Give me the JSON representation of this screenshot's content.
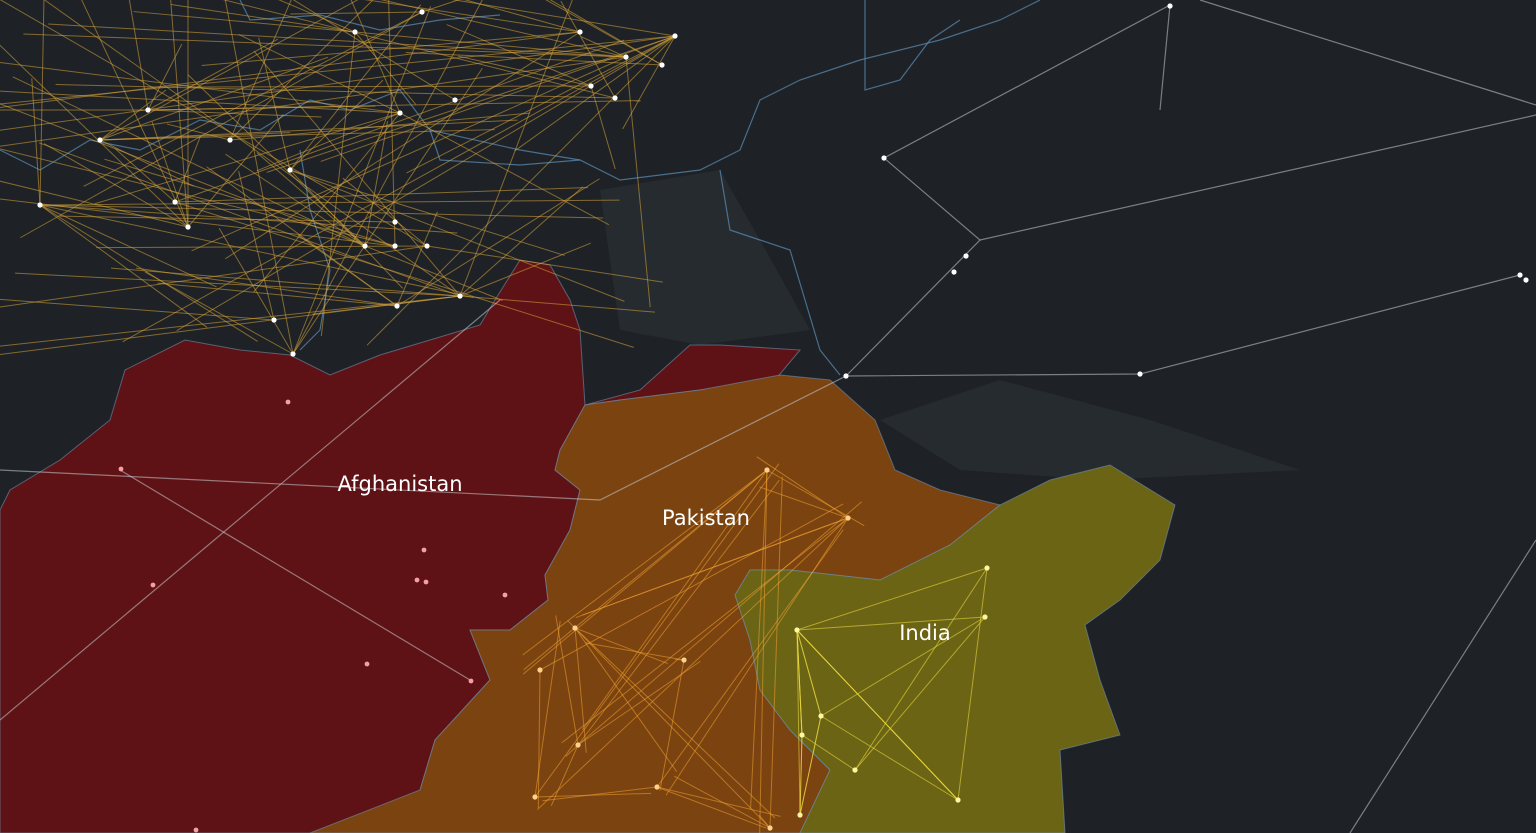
{
  "map": {
    "regions": [
      {
        "label": "Afghanistan"
      },
      {
        "label": "Pakistan"
      },
      {
        "label": "India"
      }
    ]
  }
}
